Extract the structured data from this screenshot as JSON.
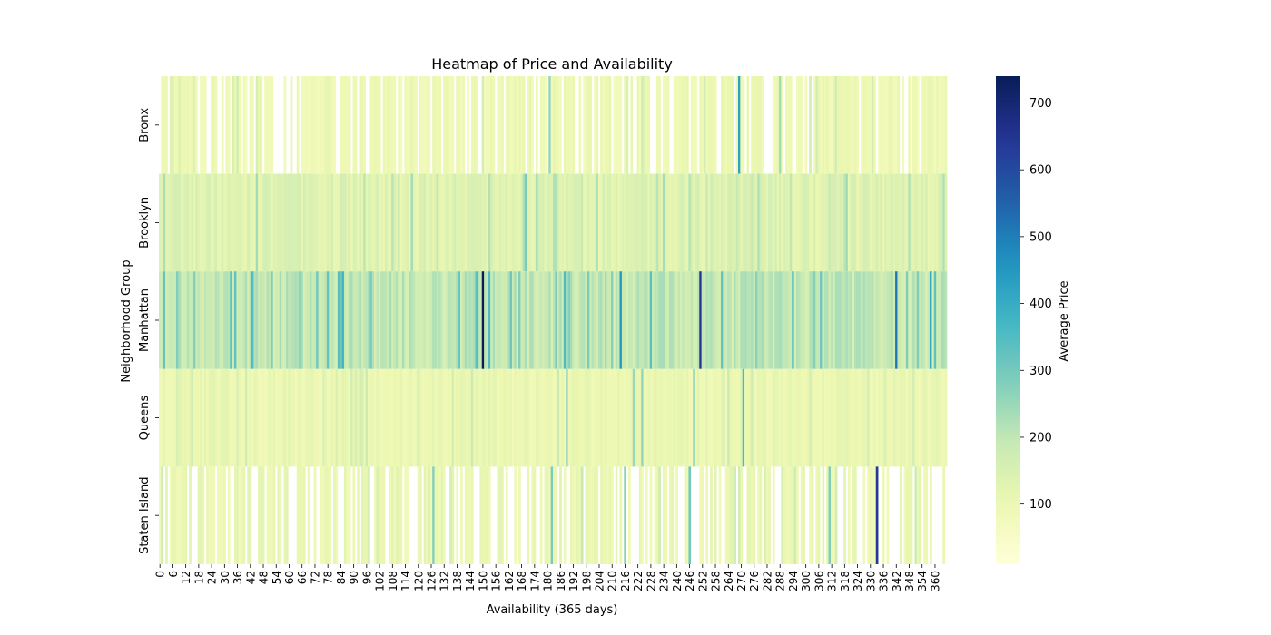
{
  "chart_data": {
    "type": "heatmap",
    "title": "Heatmap of Price and Availability",
    "xlabel": "Availability (365 days)",
    "ylabel": "Neighborhood Group",
    "rows": [
      "Bronx",
      "Brooklyn",
      "Manhattan",
      "Queens",
      "Staten Island"
    ],
    "x_range": [
      0,
      365
    ],
    "x_tick_step": 6,
    "x_tick_labels": [
      "0",
      "6",
      "12",
      "18",
      "24",
      "30",
      "36",
      "42",
      "48",
      "54",
      "60",
      "66",
      "72",
      "78",
      "84",
      "90",
      "96",
      "102",
      "108",
      "114",
      "120",
      "126",
      "132",
      "138",
      "144",
      "150",
      "156",
      "162",
      "168",
      "174",
      "180",
      "186",
      "192",
      "198",
      "204",
      "210",
      "216",
      "222",
      "228",
      "234",
      "240",
      "246",
      "252",
      "258",
      "264",
      "270",
      "276",
      "282",
      "288",
      "294",
      "300",
      "306",
      "312",
      "318",
      "324",
      "330",
      "336",
      "342",
      "348",
      "354",
      "360"
    ],
    "colorbar": {
      "label": "Average Price",
      "colormap": "YlGnBu",
      "min": 10,
      "max": 740,
      "ticks": [
        "100",
        "200",
        "300",
        "400",
        "500",
        "600",
        "700"
      ]
    },
    "row_baselines": {
      "Bronx": 95,
      "Brooklyn": 135,
      "Manhattan": 195,
      "Queens": 105,
      "Staten Island": 105
    },
    "row_missing_fraction": {
      "Bronx": 0.22,
      "Brooklyn": 0,
      "Manhattan": 0,
      "Queens": 0,
      "Staten Island": 0.38
    },
    "notable_values": {
      "Bronx": {
        "181": 260,
        "269": 420,
        "288": 240
      },
      "Brooklyn": {
        "170": 300
      },
      "Manhattan": {
        "85": 380,
        "150": 740,
        "153": 350,
        "214": 450,
        "251": 650,
        "342": 520,
        "358": 420,
        "360": 330
      },
      "Queens": {
        "189": 260,
        "220": 250,
        "224": 260,
        "248": 240,
        "271": 360
      },
      "Staten Island": {
        "127": 280,
        "182": 290,
        "216": 270,
        "246": 300,
        "311": 290,
        "333": 640
      }
    }
  }
}
